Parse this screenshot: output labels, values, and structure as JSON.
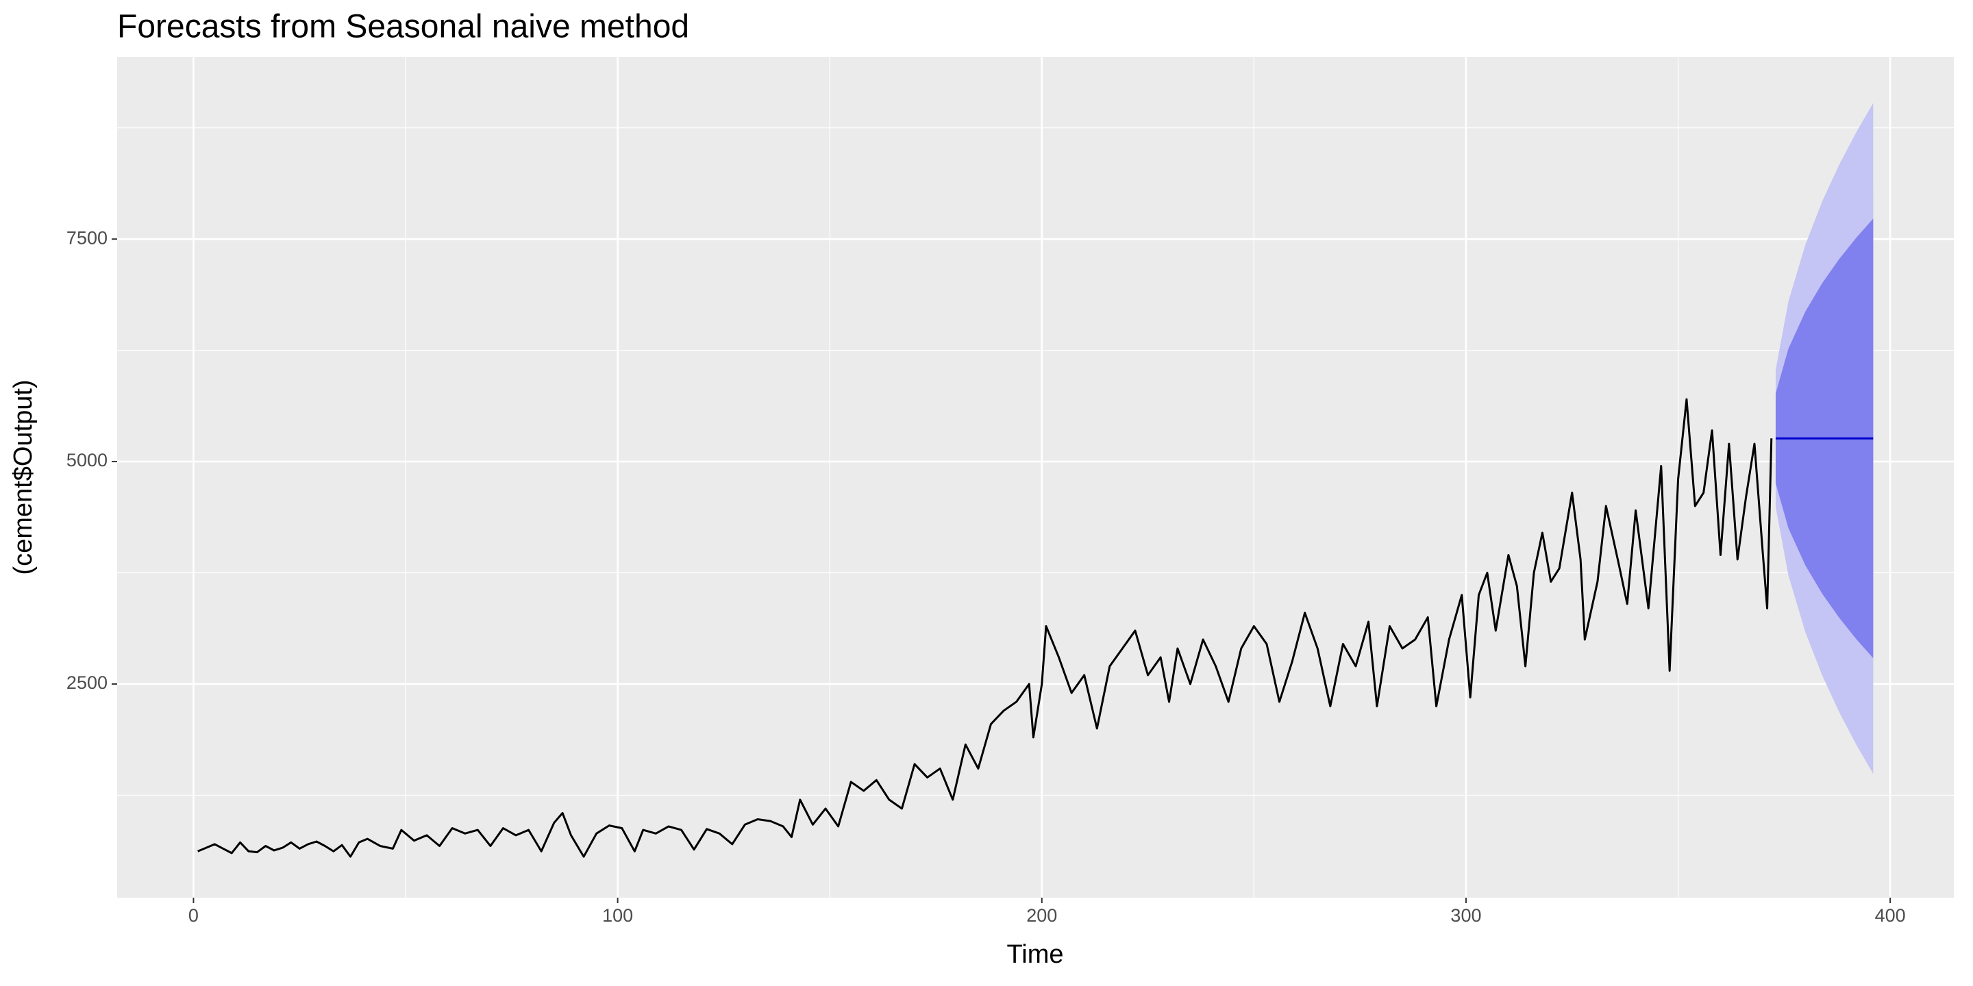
{
  "chart_data": {
    "type": "line",
    "title": "Forecasts from Seasonal naive method",
    "x_label": "Time",
    "y_label": "(cement$Output)",
    "xlim": [
      -18,
      415
    ],
    "ylim": [
      99,
      9548
    ],
    "xticks": [
      0,
      100,
      200,
      300,
      400
    ],
    "yticks": [
      2500,
      5000,
      7500
    ],
    "grid": true,
    "series": [
      {
        "color": "#000000",
        "x": [
          1,
          3,
          5,
          7,
          9,
          11,
          13,
          15,
          17,
          19,
          21,
          23,
          25,
          27,
          29,
          31,
          33,
          35,
          37,
          39,
          41,
          44,
          47,
          49,
          52,
          55,
          58,
          61,
          64,
          67,
          70,
          73,
          76,
          79,
          82,
          85,
          87,
          89,
          92,
          95,
          98,
          101,
          104,
          106,
          109,
          112,
          115,
          118,
          121,
          124,
          127,
          130,
          133,
          136,
          139,
          141,
          143,
          146,
          149,
          152,
          155,
          158,
          161,
          164,
          167,
          170,
          173,
          176,
          179,
          182,
          185,
          188,
          191,
          194,
          197,
          198,
          200,
          201,
          204,
          207,
          210,
          213,
          216,
          219,
          222,
          225,
          228,
          230,
          232,
          235,
          238,
          241,
          244,
          247,
          250,
          253,
          256,
          259,
          262,
          265,
          268,
          271,
          274,
          277,
          279,
          282,
          285,
          288,
          291,
          293,
          296,
          299,
          301,
          303,
          305,
          307,
          310,
          312,
          314,
          316,
          318,
          320,
          322,
          325,
          327,
          328,
          331,
          333,
          336,
          338,
          340,
          343,
          346,
          348,
          350,
          352,
          354,
          356,
          358,
          360,
          362,
          364,
          366,
          368,
          370,
          371,
          372
        ],
        "values": [
          620,
          660,
          700,
          650,
          600,
          720,
          620,
          610,
          680,
          630,
          660,
          720,
          650,
          700,
          730,
          680,
          620,
          690,
          560,
          720,
          760,
          680,
          650,
          860,
          740,
          800,
          680,
          880,
          820,
          860,
          680,
          880,
          800,
          860,
          620,
          940,
          1050,
          800,
          560,
          820,
          910,
          880,
          620,
          860,
          820,
          900,
          860,
          640,
          870,
          820,
          700,
          920,
          980,
          960,
          900,
          780,
          1200,
          920,
          1100,
          900,
          1400,
          1300,
          1420,
          1200,
          1100,
          1600,
          1450,
          1550,
          1200,
          1820,
          1550,
          2050,
          2200,
          2300,
          2500,
          1900,
          2500,
          3150,
          2800,
          2400,
          2600,
          2000,
          2700,
          2900,
          3100,
          2600,
          2800,
          2300,
          2900,
          2500,
          3000,
          2700,
          2300,
          2900,
          3150,
          2950,
          2300,
          2750,
          3300,
          2900,
          2250,
          2950,
          2700,
          3200,
          2250,
          3150,
          2900,
          3000,
          3250,
          2250,
          3000,
          3500,
          2350,
          3500,
          3750,
          3100,
          3950,
          3600,
          2700,
          3750,
          4200,
          3650,
          3800,
          4650,
          3900,
          3000,
          3650,
          4500,
          3850,
          3400,
          4450,
          3350,
          4950,
          2650,
          4800,
          5700,
          4500,
          4650,
          5350,
          3950,
          5200,
          3900,
          4600,
          5200,
          3950,
          3350,
          5260
        ]
      }
    ],
    "forecast": {
      "color": "#0000cc",
      "x": [
        373,
        376,
        380,
        384,
        388,
        392,
        396
      ],
      "values": [
        5260,
        5260,
        5260,
        5260,
        5260,
        5260,
        5260
      ]
    },
    "intervals": [
      {
        "color": "#c4c4f5",
        "lower": [
          4490,
          3721,
          3083,
          2594,
          2182,
          1819,
          1490
        ],
        "upper": [
          6030,
          6799,
          7437,
          7926,
          8338,
          8701,
          9030
        ]
      },
      {
        "color": "#8080ee",
        "lower": [
          4756,
          4252,
          3834,
          3513,
          3243,
          3005,
          2790
        ],
        "upper": [
          5764,
          6268,
          6686,
          7007,
          7277,
          7515,
          7730
        ]
      }
    ]
  }
}
